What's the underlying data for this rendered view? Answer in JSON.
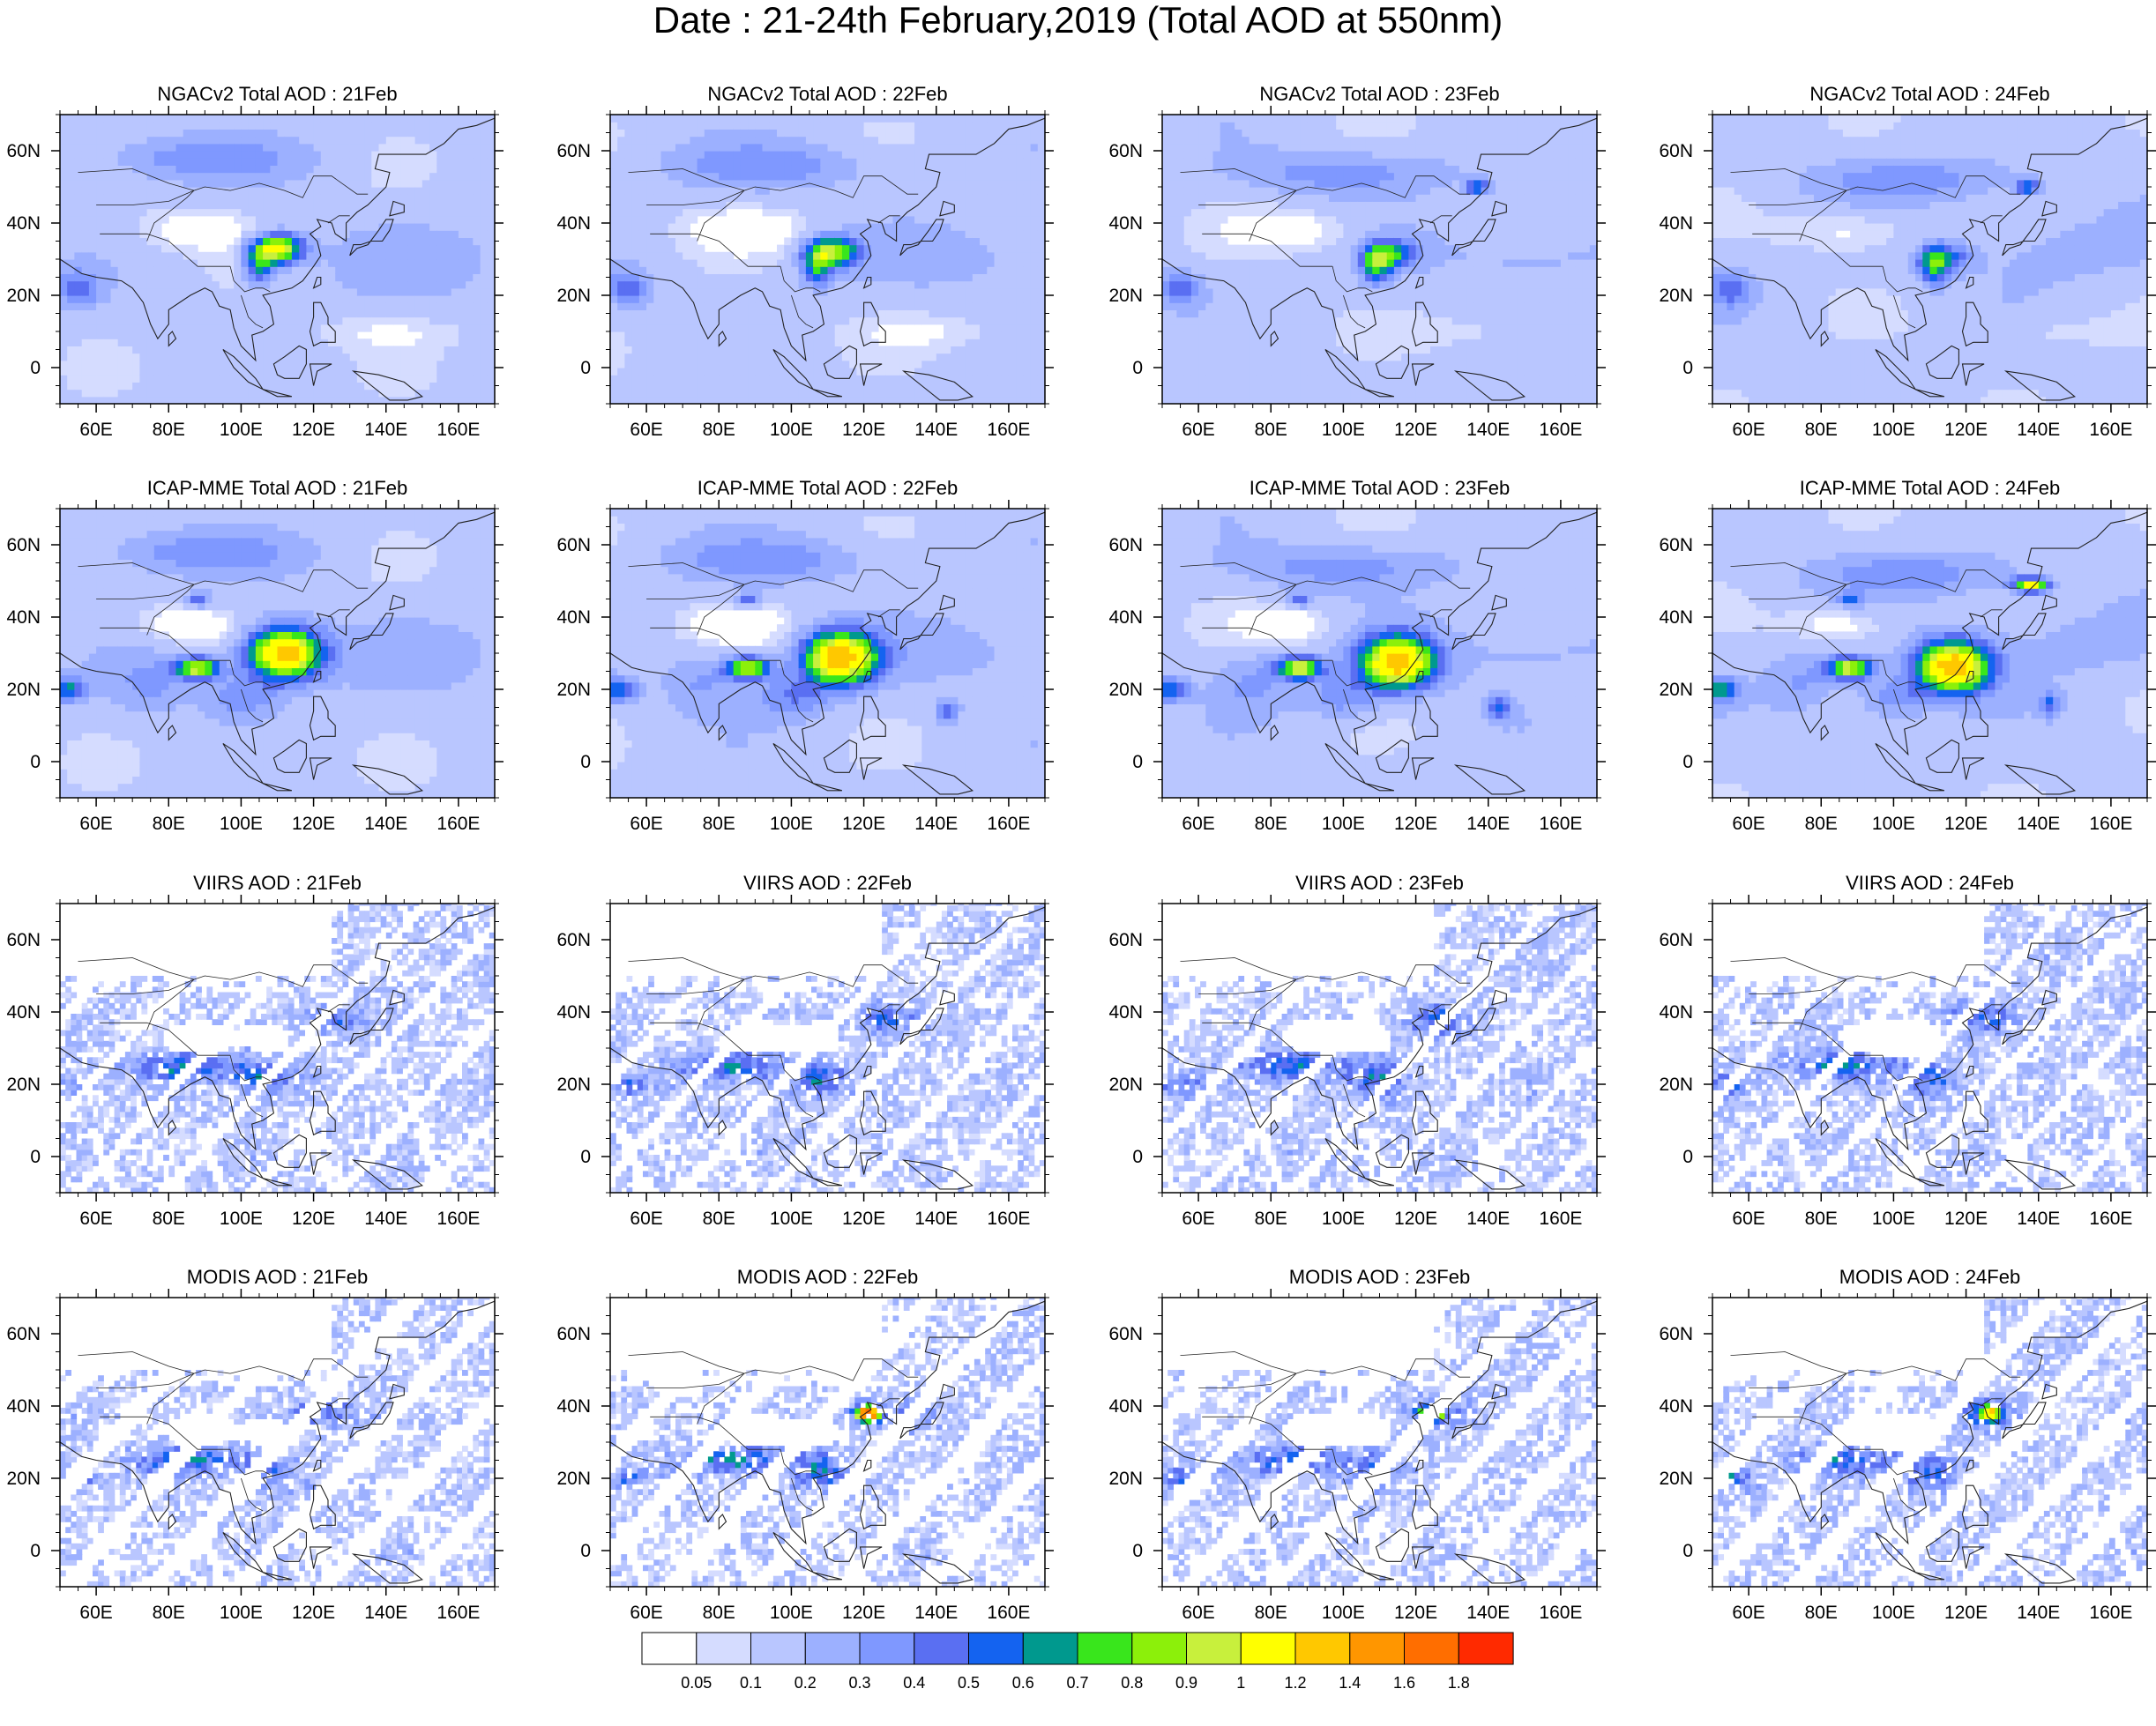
{
  "figure_title": "Date : 21-24th February,2019 (Total AOD at 550nm)",
  "chart_data": [
    {
      "type": "heatmap",
      "title": "NGACv2 Total AOD : 21Feb",
      "xticks": [
        "60E",
        "80E",
        "100E",
        "120E",
        "140E",
        "160E"
      ],
      "yticks": [
        "60N",
        "40N",
        "20N",
        "0"
      ],
      "xlim": [
        50,
        170
      ],
      "ylim": [
        -10,
        70
      ]
    },
    {
      "type": "heatmap",
      "title": "NGACv2 Total AOD : 22Feb",
      "xticks": [
        "60E",
        "80E",
        "100E",
        "120E",
        "140E",
        "160E"
      ],
      "yticks": [
        "60N",
        "40N",
        "20N",
        "0"
      ],
      "xlim": [
        50,
        170
      ],
      "ylim": [
        -10,
        70
      ]
    },
    {
      "type": "heatmap",
      "title": "NGACv2 Total AOD : 23Feb",
      "xticks": [
        "60E",
        "80E",
        "100E",
        "120E",
        "140E",
        "160E"
      ],
      "yticks": [
        "60N",
        "40N",
        "20N",
        "0"
      ],
      "xlim": [
        50,
        170
      ],
      "ylim": [
        -10,
        70
      ]
    },
    {
      "type": "heatmap",
      "title": "NGACv2 Total AOD : 24Feb",
      "xticks": [
        "60E",
        "80E",
        "100E",
        "120E",
        "140E",
        "160E"
      ],
      "yticks": [
        "60N",
        "40N",
        "20N",
        "0"
      ],
      "xlim": [
        50,
        170
      ],
      "ylim": [
        -10,
        70
      ]
    },
    {
      "type": "heatmap",
      "title": "ICAP-MME Total AOD : 21Feb",
      "xticks": [
        "60E",
        "80E",
        "100E",
        "120E",
        "140E",
        "160E"
      ],
      "yticks": [
        "60N",
        "40N",
        "20N",
        "0"
      ],
      "xlim": [
        50,
        170
      ],
      "ylim": [
        -10,
        70
      ]
    },
    {
      "type": "heatmap",
      "title": "ICAP-MME Total AOD : 22Feb",
      "xticks": [
        "60E",
        "80E",
        "100E",
        "120E",
        "140E",
        "160E"
      ],
      "yticks": [
        "60N",
        "40N",
        "20N",
        "0"
      ],
      "xlim": [
        50,
        170
      ],
      "ylim": [
        -10,
        70
      ]
    },
    {
      "type": "heatmap",
      "title": "ICAP-MME Total AOD : 23Feb",
      "xticks": [
        "60E",
        "80E",
        "100E",
        "120E",
        "140E",
        "160E"
      ],
      "yticks": [
        "60N",
        "40N",
        "20N",
        "0"
      ],
      "xlim": [
        50,
        170
      ],
      "ylim": [
        -10,
        70
      ]
    },
    {
      "type": "heatmap",
      "title": "ICAP-MME Total AOD : 24Feb",
      "xticks": [
        "60E",
        "80E",
        "100E",
        "120E",
        "140E",
        "160E"
      ],
      "yticks": [
        "60N",
        "40N",
        "20N",
        "0"
      ],
      "xlim": [
        50,
        170
      ],
      "ylim": [
        -10,
        70
      ]
    },
    {
      "type": "heatmap",
      "title": "VIIRS AOD : 21Feb",
      "xticks": [
        "60E",
        "80E",
        "100E",
        "120E",
        "140E",
        "160E"
      ],
      "yticks": [
        "60N",
        "40N",
        "20N",
        "0"
      ],
      "xlim": [
        50,
        170
      ],
      "ylim": [
        -10,
        70
      ]
    },
    {
      "type": "heatmap",
      "title": "VIIRS AOD : 22Feb",
      "xticks": [
        "60E",
        "80E",
        "100E",
        "120E",
        "140E",
        "160E"
      ],
      "yticks": [
        "60N",
        "40N",
        "20N",
        "0"
      ],
      "xlim": [
        50,
        170
      ],
      "ylim": [
        -10,
        70
      ]
    },
    {
      "type": "heatmap",
      "title": "VIIRS AOD : 23Feb",
      "xticks": [
        "60E",
        "80E",
        "100E",
        "120E",
        "140E",
        "160E"
      ],
      "yticks": [
        "60N",
        "40N",
        "20N",
        "0"
      ],
      "xlim": [
        50,
        170
      ],
      "ylim": [
        -10,
        70
      ]
    },
    {
      "type": "heatmap",
      "title": "VIIRS AOD : 24Feb",
      "xticks": [
        "60E",
        "80E",
        "100E",
        "120E",
        "140E",
        "160E"
      ],
      "yticks": [
        "60N",
        "40N",
        "20N",
        "0"
      ],
      "xlim": [
        50,
        170
      ],
      "ylim": [
        -10,
        70
      ]
    },
    {
      "type": "heatmap",
      "title": "MODIS AOD : 21Feb",
      "xticks": [
        "60E",
        "80E",
        "100E",
        "120E",
        "140E",
        "160E"
      ],
      "yticks": [
        "60N",
        "40N",
        "20N",
        "0"
      ],
      "xlim": [
        50,
        170
      ],
      "ylim": [
        -10,
        70
      ]
    },
    {
      "type": "heatmap",
      "title": "MODIS AOD : 22Feb",
      "xticks": [
        "60E",
        "80E",
        "100E",
        "120E",
        "140E",
        "160E"
      ],
      "yticks": [
        "60N",
        "40N",
        "20N",
        "0"
      ],
      "xlim": [
        50,
        170
      ],
      "ylim": [
        -10,
        70
      ]
    },
    {
      "type": "heatmap",
      "title": "MODIS AOD : 23Feb",
      "xticks": [
        "60E",
        "80E",
        "100E",
        "120E",
        "140E",
        "160E"
      ],
      "yticks": [
        "60N",
        "40N",
        "20N",
        "0"
      ],
      "xlim": [
        50,
        170
      ],
      "ylim": [
        -10,
        70
      ]
    },
    {
      "type": "heatmap",
      "title": "MODIS AOD : 24Feb",
      "xticks": [
        "60E",
        "80E",
        "100E",
        "120E",
        "140E",
        "160E"
      ],
      "yticks": [
        "60N",
        "40N",
        "20N",
        "0"
      ],
      "xlim": [
        50,
        170
      ],
      "ylim": [
        -10,
        70
      ]
    }
  ],
  "colorbar": {
    "labels": [
      "0.05",
      "0.1",
      "0.2",
      "0.3",
      "0.4",
      "0.5",
      "0.6",
      "0.7",
      "0.8",
      "0.9",
      "1",
      "1.2",
      "1.4",
      "1.6",
      "1.8"
    ],
    "colors": [
      "#ffffff",
      "#d5dcff",
      "#b9c6ff",
      "#9cb0ff",
      "#7f98ff",
      "#5a6ff2",
      "#1463f0",
      "#00998e",
      "#39e61c",
      "#8cf00a",
      "#c8f03c",
      "#ffff00",
      "#ffc800",
      "#ff9600",
      "#ff6e00",
      "#ff2a00"
    ]
  }
}
